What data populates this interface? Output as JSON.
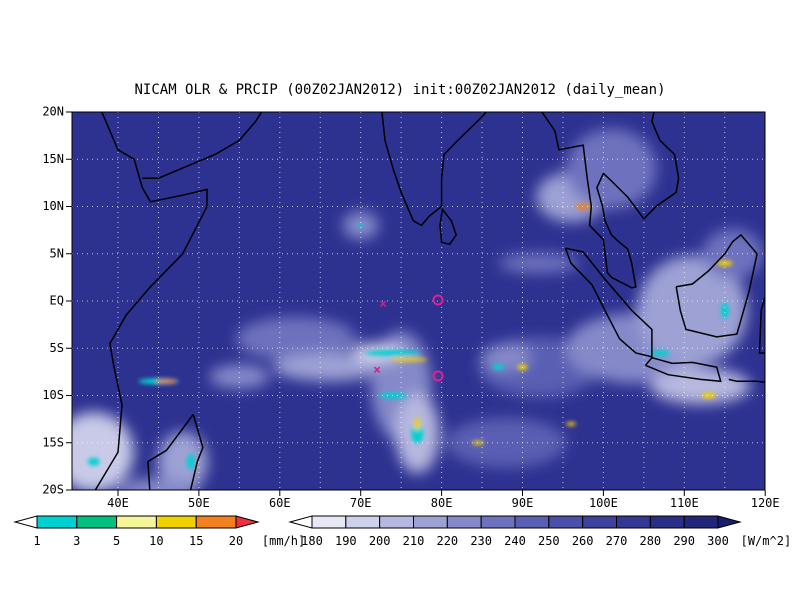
{
  "title": "NICAM OLR & PRCIP (00Z02JAN2012) init:00Z02JAN2012 (daily_mean)",
  "lat_labels": [
    {
      "lat": 20,
      "label": "20N"
    },
    {
      "lat": 15,
      "label": "15N"
    },
    {
      "lat": 10,
      "label": "10N"
    },
    {
      "lat": 5,
      "label": "5N"
    },
    {
      "lat": 0,
      "label": "EQ"
    },
    {
      "lat": -5,
      "label": "5S"
    },
    {
      "lat": -10,
      "label": "10S"
    },
    {
      "lat": -15,
      "label": "15S"
    },
    {
      "lat": -20,
      "label": "20S"
    }
  ],
  "lon_labels": [
    {
      "lon": 40,
      "label": "40E"
    },
    {
      "lon": 50,
      "label": "50E"
    },
    {
      "lon": 60,
      "label": "60E"
    },
    {
      "lon": 70,
      "label": "70E"
    },
    {
      "lon": 80,
      "label": "80E"
    },
    {
      "lon": 90,
      "label": "90E"
    },
    {
      "lon": 100,
      "label": "100E"
    },
    {
      "lon": 110,
      "label": "110E"
    },
    {
      "lon": 120,
      "label": "120E"
    }
  ],
  "precip_legend": {
    "labels": [
      "1",
      "3",
      "5",
      "10",
      "15",
      "20"
    ],
    "unit": "[mm/h]"
  },
  "olr_legend": {
    "labels": [
      "180",
      "190",
      "200",
      "210",
      "220",
      "230",
      "240",
      "250",
      "260",
      "270",
      "280",
      "290",
      "300"
    ],
    "unit": "[W/m^2]"
  }
}
